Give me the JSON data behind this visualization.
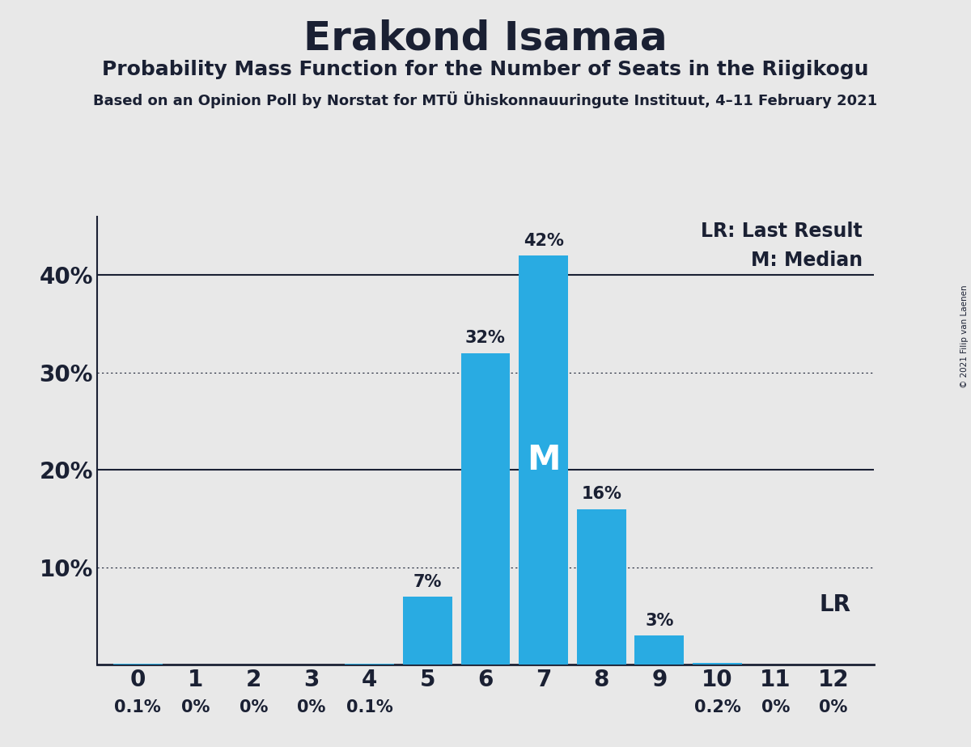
{
  "title": "Erakond Isamaa",
  "subtitle": "Probability Mass Function for the Number of Seats in the Riigikogu",
  "source_line": "Based on an Opinion Poll by Norstat for MTÜ Ühiskonnauuringute Instituut, 4–11 February 2021",
  "copyright": "© 2021 Filip van Laenen",
  "categories": [
    0,
    1,
    2,
    3,
    4,
    5,
    6,
    7,
    8,
    9,
    10,
    11,
    12
  ],
  "values": [
    0.1,
    0.0,
    0.0,
    0.0,
    0.1,
    7.0,
    32.0,
    42.0,
    16.0,
    3.0,
    0.2,
    0.0,
    0.0
  ],
  "bar_color": "#29abe2",
  "bg_color": "#e8e8e8",
  "text_color": "#1a2033",
  "bar_labels": [
    "0.1%",
    "0%",
    "0%",
    "0%",
    "0.1%",
    "7%",
    "32%",
    "42%",
    "16%",
    "3%",
    "0.2%",
    "0%",
    "0%"
  ],
  "median_bar_index": 7,
  "lr_bar_index": 12,
  "legend_lr": "LR: Last Result",
  "legend_m": "M: Median",
  "ylim": [
    0,
    46
  ],
  "title_fontsize": 36,
  "subtitle_fontsize": 18,
  "source_fontsize": 13,
  "bar_label_fontsize": 15,
  "axis_fontsize": 20,
  "legend_fontsize": 17,
  "lr_label_fontsize": 20
}
